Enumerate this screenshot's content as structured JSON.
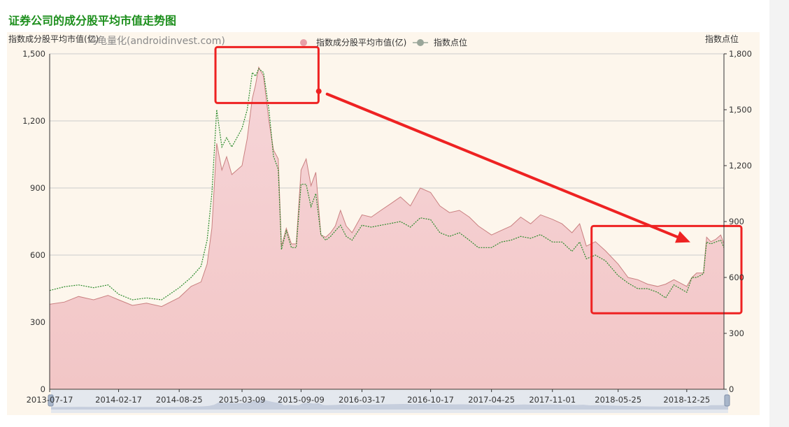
{
  "page": {
    "title": "证券公司的成分股平均市值走势图"
  },
  "watermark": "乌龟量化(androidinvest.com)",
  "chart_data": {
    "type": "area",
    "left_axis_label": "指数成分股平均市值(亿)",
    "right_axis_label": "指数点位",
    "left_ylim": [
      0,
      1500
    ],
    "right_ylim": [
      0,
      1800
    ],
    "left_ticks": [
      "0",
      "300",
      "600",
      "900",
      "1,200",
      "1,500"
    ],
    "right_ticks": [
      "0",
      "300",
      "600",
      "900",
      "1,200",
      "1,500",
      "1,800"
    ],
    "x_tick_labels": [
      "2013-07-17",
      "2014-02-17",
      "2014-08-25",
      "2015-03-09",
      "2015-09-09",
      "2016-03-17",
      "2016-10-17",
      "2017-04-25",
      "2017-11-01",
      "2018-05-25",
      "2018-12-25"
    ],
    "grid": true,
    "legend_position": "top-center",
    "colors": {
      "area_fill": "#f2c6c6",
      "area_line": "#c98080",
      "index_line": "#2a8a2a",
      "grid": "#cccccc"
    },
    "series": [
      {
        "name": "指数成分股平均市值(亿)",
        "axis": "left",
        "x": [
          "2013-07-17",
          "2013-09-01",
          "2013-10-15",
          "2013-12-01",
          "2014-01-15",
          "2014-02-17",
          "2014-04-01",
          "2014-05-15",
          "2014-07-01",
          "2014-08-25",
          "2014-10-01",
          "2014-11-01",
          "2014-11-20",
          "2014-12-05",
          "2014-12-20",
          "2015-01-05",
          "2015-01-20",
          "2015-02-05",
          "2015-03-09",
          "2015-03-25",
          "2015-04-10",
          "2015-04-20",
          "2015-04-30",
          "2015-05-15",
          "2015-06-01",
          "2015-06-15",
          "2015-06-30",
          "2015-07-10",
          "2015-07-25",
          "2015-08-10",
          "2015-08-25",
          "2015-09-09",
          "2015-09-25",
          "2015-10-10",
          "2015-10-25",
          "2015-11-10",
          "2015-11-25",
          "2015-12-10",
          "2015-12-25",
          "2016-01-10",
          "2016-01-28",
          "2016-02-15",
          "2016-03-17",
          "2016-04-15",
          "2016-05-15",
          "2016-06-15",
          "2016-07-15",
          "2016-08-15",
          "2016-09-15",
          "2016-10-17",
          "2016-11-15",
          "2016-12-15",
          "2017-01-15",
          "2017-02-15",
          "2017-03-15",
          "2017-04-25",
          "2017-05-25",
          "2017-06-25",
          "2017-07-25",
          "2017-08-25",
          "2017-09-25",
          "2017-11-01",
          "2017-12-01",
          "2018-01-01",
          "2018-01-25",
          "2018-02-15",
          "2018-03-15",
          "2018-04-15",
          "2018-05-25",
          "2018-06-25",
          "2018-07-25",
          "2018-08-25",
          "2018-09-25",
          "2018-10-20",
          "2018-11-15",
          "2018-12-25",
          "2019-01-10",
          "2019-01-25",
          "2019-02-15",
          "2019-02-25",
          "2019-03-10",
          "2019-03-25",
          "2019-04-10",
          "2019-04-20"
        ],
        "values": [
          380,
          390,
          415,
          400,
          420,
          400,
          375,
          385,
          370,
          410,
          460,
          480,
          560,
          720,
          1100,
          980,
          1040,
          960,
          1000,
          1120,
          1300,
          1360,
          1440,
          1400,
          1200,
          1070,
          1030,
          640,
          720,
          650,
          650,
          980,
          1030,
          910,
          970,
          690,
          680,
          700,
          730,
          800,
          730,
          700,
          780,
          770,
          800,
          830,
          860,
          820,
          900,
          880,
          820,
          790,
          800,
          770,
          730,
          690,
          710,
          730,
          770,
          740,
          780,
          760,
          740,
          700,
          740,
          640,
          660,
          620,
          560,
          500,
          490,
          470,
          460,
          470,
          490,
          460,
          500,
          520,
          520,
          680,
          660,
          670,
          690,
          650
        ]
      },
      {
        "name": "指数点位",
        "axis": "right",
        "x": [
          "2013-07-17",
          "2013-09-01",
          "2013-10-15",
          "2013-12-01",
          "2014-01-15",
          "2014-02-17",
          "2014-04-01",
          "2014-05-15",
          "2014-07-01",
          "2014-08-25",
          "2014-10-01",
          "2014-11-01",
          "2014-11-20",
          "2014-12-05",
          "2014-12-20",
          "2015-01-05",
          "2015-01-20",
          "2015-02-05",
          "2015-03-09",
          "2015-03-25",
          "2015-04-10",
          "2015-04-20",
          "2015-04-30",
          "2015-05-15",
          "2015-06-01",
          "2015-06-15",
          "2015-06-30",
          "2015-07-10",
          "2015-07-25",
          "2015-08-10",
          "2015-08-25",
          "2015-09-09",
          "2015-09-25",
          "2015-10-10",
          "2015-10-25",
          "2015-11-10",
          "2015-11-25",
          "2015-12-10",
          "2015-12-25",
          "2016-01-10",
          "2016-01-28",
          "2016-02-15",
          "2016-03-17",
          "2016-04-15",
          "2016-05-15",
          "2016-06-15",
          "2016-07-15",
          "2016-08-15",
          "2016-09-15",
          "2016-10-17",
          "2016-11-15",
          "2016-12-15",
          "2017-01-15",
          "2017-02-15",
          "2017-03-15",
          "2017-04-25",
          "2017-05-25",
          "2017-06-25",
          "2017-07-25",
          "2017-08-25",
          "2017-09-25",
          "2017-11-01",
          "2017-12-01",
          "2018-01-01",
          "2018-01-25",
          "2018-02-15",
          "2018-03-15",
          "2018-04-15",
          "2018-05-25",
          "2018-06-25",
          "2018-07-25",
          "2018-08-25",
          "2018-09-25",
          "2018-10-20",
          "2018-11-15",
          "2018-12-25",
          "2019-01-10",
          "2019-01-25",
          "2019-02-15",
          "2019-02-25",
          "2019-03-10",
          "2019-03-25",
          "2019-04-10",
          "2019-04-20"
        ],
        "values": [
          530,
          550,
          560,
          545,
          560,
          510,
          480,
          490,
          480,
          545,
          600,
          660,
          800,
          1050,
          1500,
          1300,
          1350,
          1300,
          1400,
          1500,
          1700,
          1680,
          1720,
          1700,
          1500,
          1250,
          1180,
          750,
          850,
          760,
          760,
          1100,
          1100,
          980,
          1050,
          830,
          800,
          820,
          850,
          880,
          820,
          800,
          880,
          870,
          880,
          890,
          900,
          870,
          920,
          910,
          840,
          820,
          840,
          800,
          760,
          760,
          790,
          800,
          820,
          810,
          830,
          790,
          790,
          740,
          790,
          700,
          720,
          690,
          610,
          570,
          540,
          540,
          520,
          490,
          560,
          520,
          600,
          600,
          620,
          790,
          780,
          790,
          800,
          760
        ]
      }
    ],
    "annotations": [
      {
        "type": "highlight-box",
        "color": "#ee2222",
        "covers": [
          "2015-03-09",
          "2015-09-09"
        ],
        "left_axis_range": [
          1280,
          1530
        ]
      },
      {
        "type": "highlight-box",
        "color": "#ee2222",
        "covers": [
          "2018-05-25",
          "2019-04-20"
        ],
        "left_axis_range": [
          340,
          730
        ]
      },
      {
        "type": "arrow",
        "color": "#ee2222",
        "from": [
          "2015-09-25",
          1320
        ],
        "to": [
          "2018-12-10",
          620
        ]
      }
    ],
    "data_zoom": {
      "range": [
        "2013-07-17",
        "2019-04-20"
      ]
    }
  }
}
